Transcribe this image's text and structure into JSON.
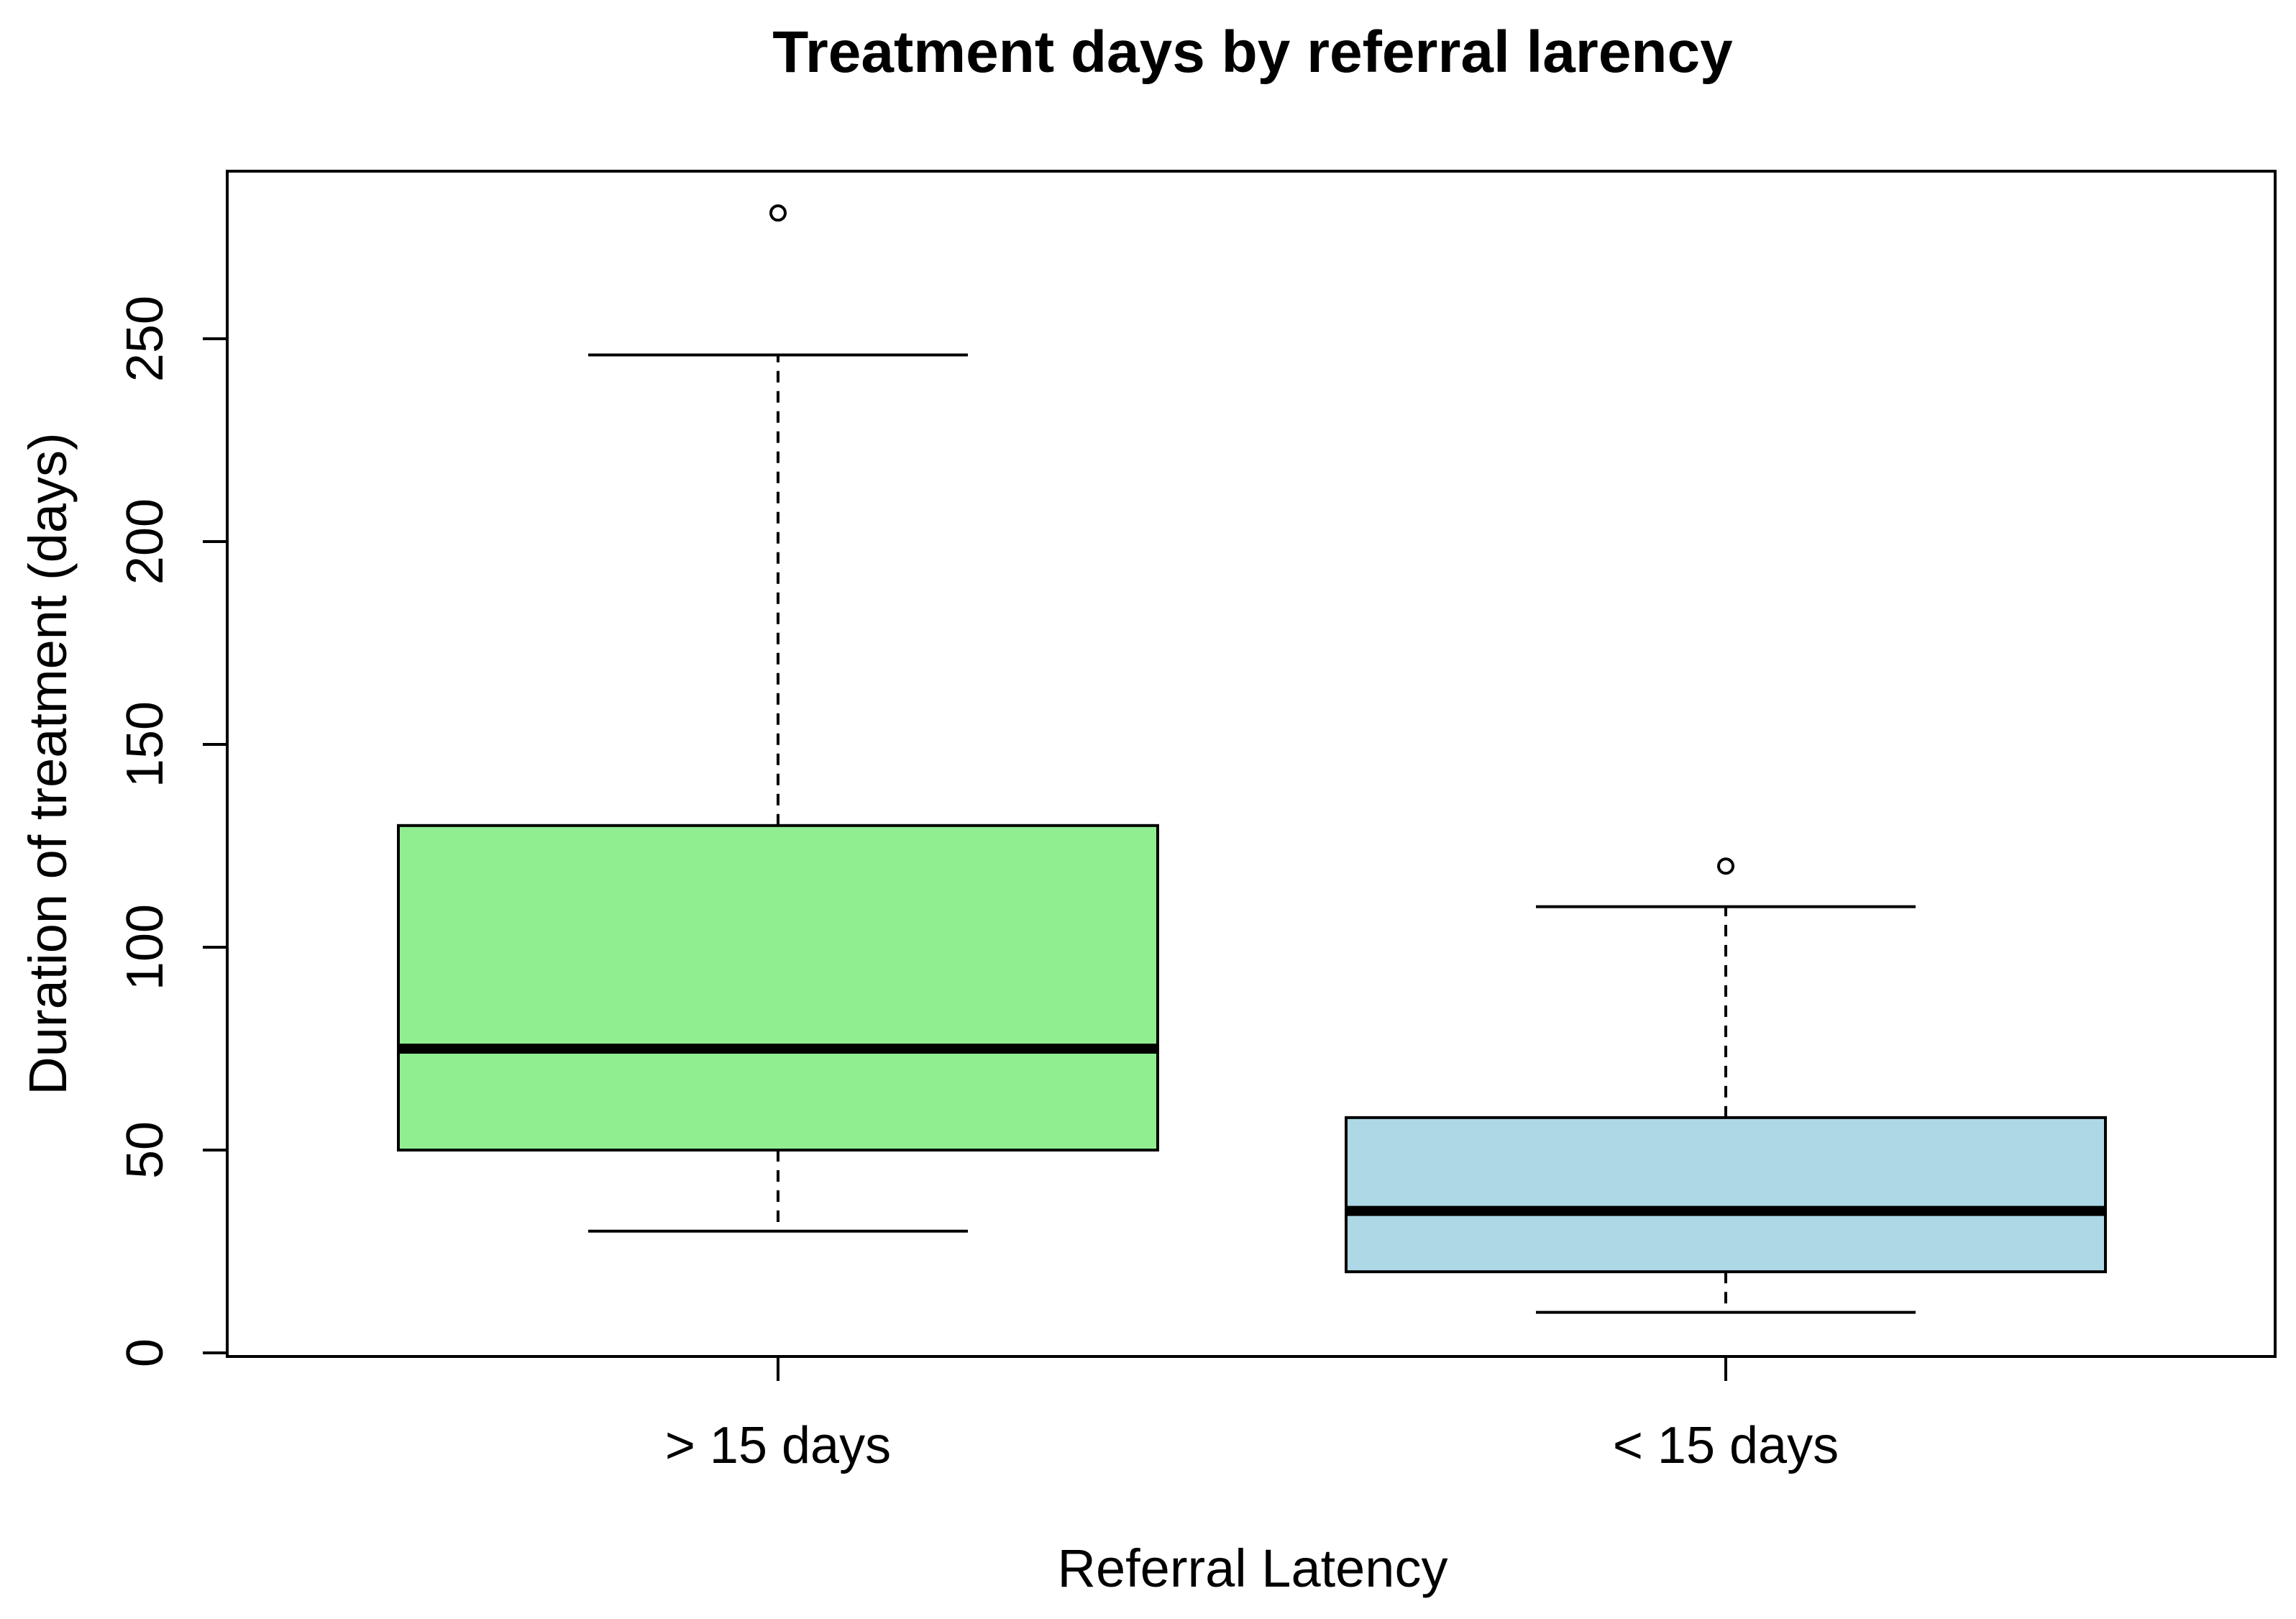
{
  "chart_data": {
    "type": "boxplot",
    "title": "Treatment days by referral larency",
    "xlabel": "Referral Latency",
    "ylabel": "Duration of treatment (days)",
    "ylim": [
      0,
      290
    ],
    "yticks": [
      0,
      50,
      100,
      150,
      200,
      250
    ],
    "grid": false,
    "categories": [
      "> 15 days",
      "< 15 days"
    ],
    "boxes": [
      {
        "category": "> 15 days",
        "whisker_low": 30,
        "q1": 50,
        "median": 75,
        "q3": 130,
        "whisker_high": 246,
        "outliers": [
          281
        ],
        "color": "#90EE90"
      },
      {
        "category": "< 15 days",
        "whisker_low": 10,
        "q1": 20,
        "median": 35,
        "q3": 58,
        "whisker_high": 110,
        "outliers": [
          120
        ],
        "color": "#ADD8E6"
      }
    ]
  }
}
